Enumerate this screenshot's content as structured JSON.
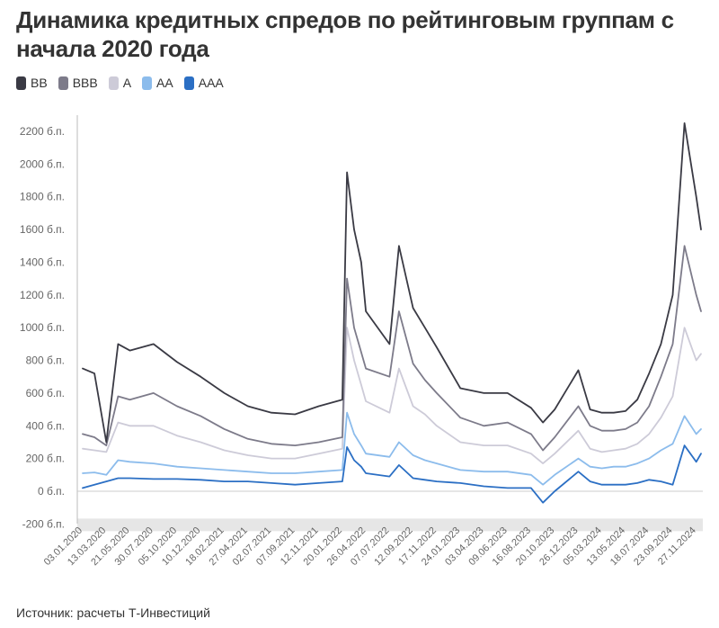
{
  "title": "Динамика кредитных спредов по рейтинговым группам с начала 2020 года",
  "source": "Источник: расчеты Т-Инвестиций",
  "chart_data": {
    "type": "line",
    "y_unit": "б.п.",
    "ylim": [
      -200,
      2300
    ],
    "y_ticks": [
      -200,
      0,
      200,
      400,
      600,
      800,
      1000,
      1200,
      1400,
      1600,
      1800,
      2000,
      2200
    ],
    "y_tick_labels": [
      "-200 б.п.",
      "0 б.п.",
      "200 б.п.",
      "400 б.п.",
      "600 б.п.",
      "800 б.п.",
      "1000 б.п.",
      "1200 б.п.",
      "1400 б.п.",
      "1600 б.п.",
      "1800 б.п.",
      "2000 б.п.",
      "2200 б.п."
    ],
    "x_tick_labels": [
      "03.01.2020",
      "13.03.2020",
      "21.05.2020",
      "30.07.2020",
      "05.10.2020",
      "10.12.2020",
      "18.02.2021",
      "27.04.2021",
      "02.07.2021",
      "07.09.2021",
      "12.11.2021",
      "20.01.2022",
      "26.04.2022",
      "07.07.2022",
      "12.09.2022",
      "17.11.2022",
      "24.01.2023",
      "03.04.2023",
      "09.06.2023",
      "16.08.2023",
      "20.10.2023",
      "26.12.2023",
      "05.03.2024",
      "13.05.2024",
      "18.07.2024",
      "23.09.2024",
      "27.11.2024"
    ],
    "grid": false,
    "legend_position": "top-left",
    "x": [
      0,
      0.5,
      1,
      1.5,
      2,
      3,
      4,
      5,
      6,
      7,
      8,
      9,
      10,
      11,
      11.2,
      11.5,
      11.8,
      12,
      13,
      13.4,
      14,
      14.5,
      15,
      16,
      17,
      18,
      19,
      19.5,
      20,
      21,
      21.5,
      22,
      22.5,
      23,
      23.5,
      24,
      24.5,
      25,
      25.5,
      26,
      26.2
    ],
    "series": [
      {
        "name": "BB",
        "color": "#3a3a44",
        "values": [
          750,
          720,
          300,
          900,
          860,
          900,
          790,
          700,
          600,
          520,
          480,
          470,
          520,
          560,
          1950,
          1600,
          1400,
          1100,
          900,
          1500,
          1120,
          1000,
          880,
          630,
          600,
          600,
          510,
          420,
          500,
          740,
          500,
          480,
          480,
          490,
          560,
          720,
          900,
          1200,
          2250,
          1800,
          1600
        ]
      },
      {
        "name": "BBB",
        "color": "#7d7b8a",
        "values": [
          350,
          330,
          280,
          580,
          560,
          600,
          520,
          460,
          380,
          320,
          290,
          280,
          300,
          330,
          1300,
          1000,
          850,
          750,
          700,
          1100,
          780,
          680,
          600,
          450,
          400,
          420,
          350,
          250,
          330,
          520,
          400,
          370,
          370,
          380,
          420,
          520,
          700,
          900,
          1500,
          1200,
          1100
        ]
      },
      {
        "name": "A",
        "color": "#cdcbd8",
        "values": [
          260,
          250,
          240,
          420,
          400,
          400,
          340,
          300,
          250,
          220,
          200,
          200,
          230,
          260,
          1000,
          800,
          650,
          550,
          480,
          750,
          520,
          470,
          400,
          300,
          280,
          280,
          230,
          170,
          230,
          370,
          260,
          240,
          250,
          260,
          290,
          350,
          450,
          580,
          1000,
          800,
          840
        ]
      },
      {
        "name": "AA",
        "color": "#8cbcec",
        "values": [
          110,
          115,
          100,
          190,
          180,
          170,
          150,
          140,
          130,
          120,
          110,
          110,
          120,
          130,
          480,
          350,
          280,
          230,
          210,
          300,
          220,
          190,
          170,
          130,
          120,
          120,
          100,
          40,
          100,
          200,
          150,
          140,
          150,
          150,
          170,
          200,
          250,
          290,
          460,
          350,
          380
        ]
      },
      {
        "name": "AAA",
        "color": "#2b6fc4",
        "values": [
          20,
          40,
          60,
          80,
          80,
          75,
          75,
          70,
          60,
          60,
          50,
          40,
          50,
          60,
          270,
          190,
          150,
          110,
          90,
          160,
          80,
          70,
          60,
          50,
          30,
          20,
          20,
          -70,
          0,
          120,
          60,
          40,
          40,
          40,
          50,
          70,
          60,
          40,
          280,
          180,
          230
        ]
      }
    ]
  }
}
